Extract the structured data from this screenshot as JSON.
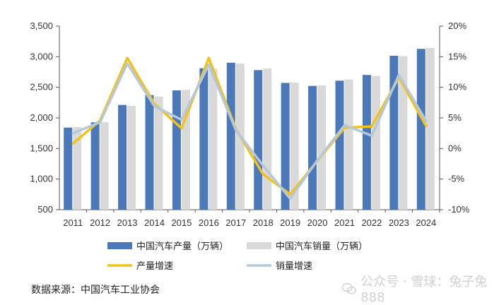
{
  "chart_data": {
    "type": "bar+line",
    "categories": [
      "2011",
      "2012",
      "2013",
      "2014",
      "2015",
      "2016",
      "2017",
      "2018",
      "2019",
      "2020",
      "2021",
      "2022",
      "2023",
      "2024"
    ],
    "series": [
      {
        "name": "中国汽车产量（万辆）",
        "kind": "bar",
        "axis": "left",
        "color": "#4a78b8",
        "values": [
          1842,
          1927,
          2212,
          2372,
          2450,
          2812,
          2902,
          2781,
          2572,
          2523,
          2608,
          2702,
          3016,
          3128
        ]
      },
      {
        "name": "中国汽车销量（万辆）",
        "kind": "bar",
        "axis": "left",
        "color": "#d9d9d9",
        "values": [
          1851,
          1931,
          2198,
          2349,
          2460,
          2803,
          2888,
          2808,
          2577,
          2531,
          2628,
          2686,
          3009,
          3144
        ]
      },
      {
        "name": "产量增速",
        "kind": "line",
        "axis": "right",
        "color": "#f2c21a",
        "values": [
          0.8,
          4.6,
          14.8,
          7.3,
          3.3,
          14.8,
          3.2,
          -4.2,
          -7.5,
          -2.0,
          3.4,
          3.6,
          11.6,
          3.7
        ]
      },
      {
        "name": "销量增速",
        "kind": "line",
        "axis": "right",
        "color": "#b4c7dc",
        "values": [
          2.5,
          4.3,
          13.9,
          6.9,
          4.7,
          13.7,
          3.0,
          -2.8,
          -8.2,
          -1.9,
          3.8,
          2.1,
          12.0,
          4.5
        ]
      }
    ],
    "yleft": {
      "min": 500,
      "max": 3500,
      "ticks": [
        "500",
        "1,000",
        "1,500",
        "2,000",
        "2,500",
        "3,000",
        "3,500"
      ]
    },
    "yright": {
      "min": -10,
      "max": 20,
      "ticks": [
        "-10%",
        "-5%",
        "0%",
        "5%",
        "10%",
        "15%",
        "20%"
      ]
    }
  },
  "source": "数据来源：中国汽车工业协会",
  "watermark": "公众号 · 雪球：兔子兔888"
}
